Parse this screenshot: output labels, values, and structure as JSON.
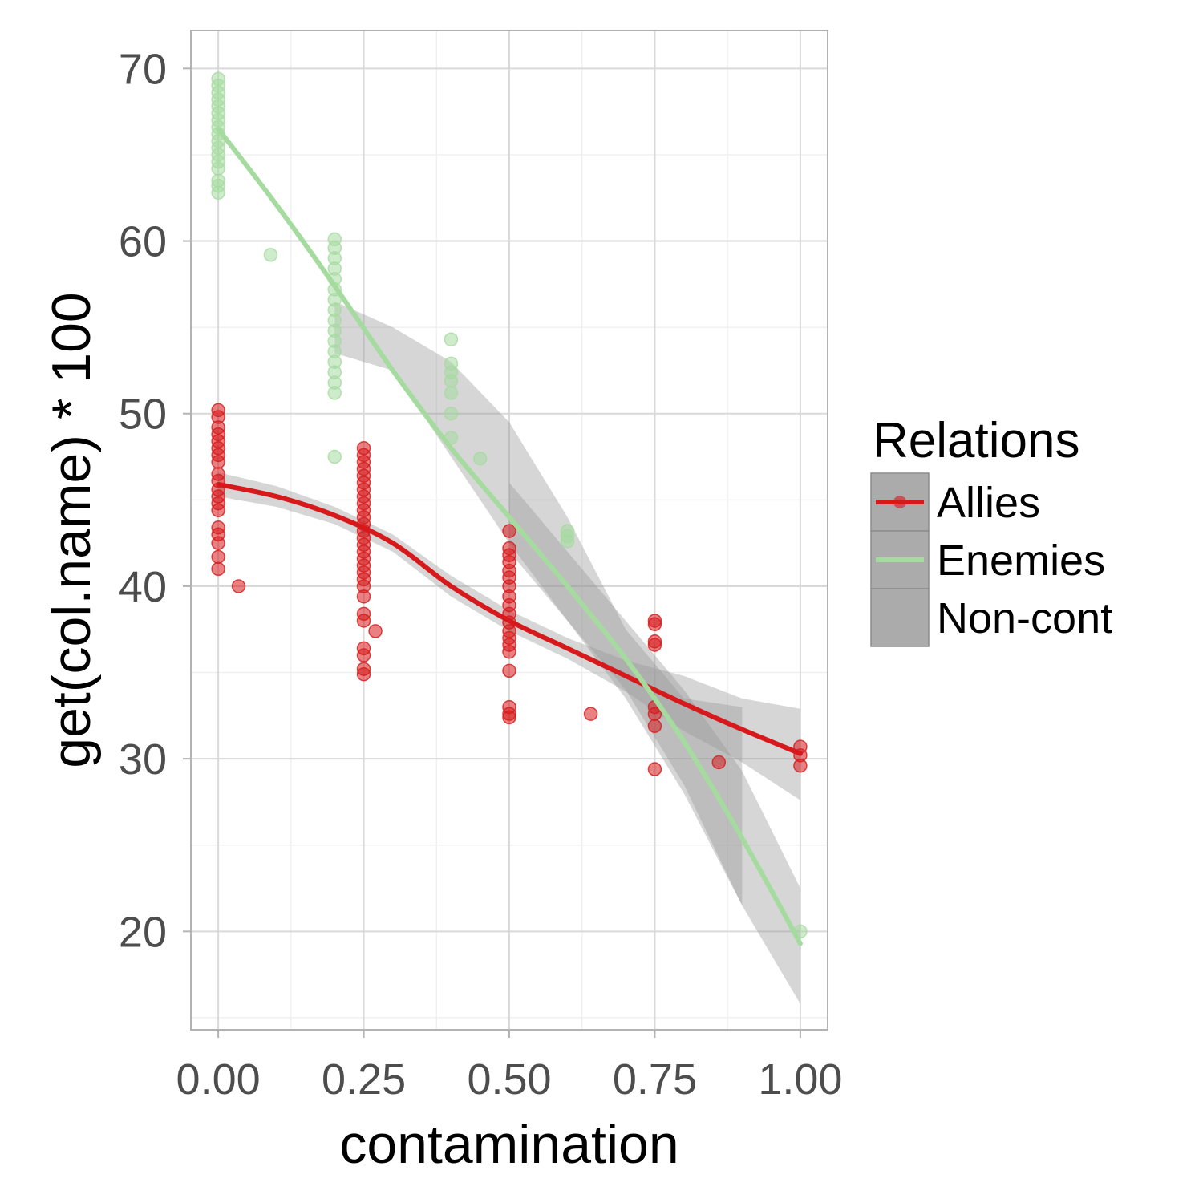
{
  "chart_data": {
    "type": "scatter",
    "xlabel": "contamination",
    "ylabel": "get(col.name) * 100",
    "xlim": [
      -0.047,
      1.047
    ],
    "ylim": [
      14.3,
      72.2
    ],
    "x_ticks": [
      0,
      0.25,
      0.5,
      0.75,
      1
    ],
    "x_tick_labels": [
      "0.00",
      "0.25",
      "0.50",
      "0.75",
      "1.00"
    ],
    "y_ticks": [
      20,
      30,
      40,
      50,
      60,
      70
    ],
    "y_tick_labels": [
      "20",
      "30",
      "40",
      "50",
      "60",
      "70"
    ],
    "grid": true,
    "legend": {
      "title": "Relations",
      "placement": "right",
      "entries": [
        "Allies",
        "Enemies",
        "Non-cont"
      ]
    },
    "colors": {
      "Allies": "#d7191c",
      "Enemies": "#a6dba0",
      "Non-cont": "#999999",
      "ribbon": "#999999",
      "panel_border": "#b3b3b3",
      "grid_major": "#d9d9d9",
      "grid_minor": "#f0f0f0"
    },
    "series": [
      {
        "name": "Allies",
        "points": [
          [
            0,
            50.2
          ],
          [
            0,
            49.8
          ],
          [
            0,
            49.2
          ],
          [
            0,
            48.8
          ],
          [
            0,
            48.4
          ],
          [
            0,
            48.0
          ],
          [
            0,
            47.6
          ],
          [
            0,
            47.2
          ],
          [
            0,
            46.5
          ],
          [
            0,
            46.1
          ],
          [
            0,
            45.6
          ],
          [
            0,
            45.2
          ],
          [
            0,
            44.8
          ],
          [
            0,
            44.4
          ],
          [
            0,
            43.4
          ],
          [
            0,
            43.0
          ],
          [
            0,
            42.5
          ],
          [
            0,
            41.7
          ],
          [
            0,
            41.0
          ],
          [
            0.035,
            40.0
          ],
          [
            0.25,
            48.0
          ],
          [
            0.25,
            47.6
          ],
          [
            0.25,
            47.2
          ],
          [
            0.25,
            46.8
          ],
          [
            0.25,
            46.4
          ],
          [
            0.25,
            46.0
          ],
          [
            0.25,
            45.6
          ],
          [
            0.25,
            45.2
          ],
          [
            0.25,
            44.8
          ],
          [
            0.25,
            44.4
          ],
          [
            0.25,
            44.0
          ],
          [
            0.25,
            43.6
          ],
          [
            0.25,
            43.2
          ],
          [
            0.25,
            42.8
          ],
          [
            0.25,
            42.4
          ],
          [
            0.25,
            42.0
          ],
          [
            0.25,
            41.6
          ],
          [
            0.25,
            41.2
          ],
          [
            0.25,
            40.8
          ],
          [
            0.25,
            40.4
          ],
          [
            0.25,
            40.0
          ],
          [
            0.25,
            39.4
          ],
          [
            0.25,
            38.4
          ],
          [
            0.25,
            38.0
          ],
          [
            0.25,
            36.4
          ],
          [
            0.25,
            36.0
          ],
          [
            0.25,
            35.2
          ],
          [
            0.25,
            34.9
          ],
          [
            0.27,
            37.4
          ],
          [
            0.5,
            43.2
          ],
          [
            0.5,
            42.2
          ],
          [
            0.5,
            41.8
          ],
          [
            0.5,
            41.4
          ],
          [
            0.5,
            40.9
          ],
          [
            0.5,
            40.5
          ],
          [
            0.5,
            40.0
          ],
          [
            0.5,
            39.4
          ],
          [
            0.5,
            38.9
          ],
          [
            0.5,
            38.4
          ],
          [
            0.5,
            37.9
          ],
          [
            0.5,
            37.4
          ],
          [
            0.5,
            37.0
          ],
          [
            0.5,
            36.6
          ],
          [
            0.5,
            36.2
          ],
          [
            0.5,
            35.1
          ],
          [
            0.5,
            33.0
          ],
          [
            0.5,
            32.6
          ],
          [
            0.5,
            32.4
          ],
          [
            0.64,
            32.6
          ],
          [
            0.75,
            38.0
          ],
          [
            0.75,
            37.8
          ],
          [
            0.75,
            36.8
          ],
          [
            0.75,
            36.6
          ],
          [
            0.75,
            33.0
          ],
          [
            0.75,
            32.6
          ],
          [
            0.75,
            31.9
          ],
          [
            0.75,
            29.4
          ],
          [
            0.86,
            29.8
          ],
          [
            1,
            30.7
          ],
          [
            1,
            30.2
          ],
          [
            1,
            29.6
          ]
        ],
        "fit": [
          [
            0,
            45.9
          ],
          [
            0.1,
            45.2
          ],
          [
            0.2,
            44.1
          ],
          [
            0.3,
            42.5
          ],
          [
            0.4,
            40.0
          ],
          [
            0.5,
            38.0
          ],
          [
            0.6,
            36.4
          ],
          [
            0.7,
            34.8
          ],
          [
            0.8,
            33.2
          ],
          [
            0.9,
            31.7
          ],
          [
            1,
            30.3
          ]
        ],
        "ribbon_upper": [
          [
            0,
            46.6
          ],
          [
            0.1,
            45.8
          ],
          [
            0.2,
            44.6
          ],
          [
            0.3,
            43.0
          ],
          [
            0.4,
            40.6
          ],
          [
            0.5,
            38.6
          ],
          [
            0.6,
            37.0
          ],
          [
            0.7,
            35.7
          ],
          [
            0.8,
            34.8
          ],
          [
            0.9,
            33.5
          ],
          [
            1,
            32.9
          ]
        ],
        "ribbon_lower": [
          [
            0,
            45.2
          ],
          [
            0.1,
            44.6
          ],
          [
            0.2,
            43.6
          ],
          [
            0.3,
            42.0
          ],
          [
            0.4,
            39.4
          ],
          [
            0.5,
            37.4
          ],
          [
            0.6,
            35.8
          ],
          [
            0.7,
            33.9
          ],
          [
            0.8,
            31.6
          ],
          [
            0.9,
            29.8
          ],
          [
            1,
            27.6
          ]
        ]
      },
      {
        "name": "Enemies",
        "points": [
          [
            0,
            69.4
          ],
          [
            0,
            69.0
          ],
          [
            0,
            68.6
          ],
          [
            0,
            68.2
          ],
          [
            0,
            67.8
          ],
          [
            0,
            67.4
          ],
          [
            0,
            67.0
          ],
          [
            0,
            66.6
          ],
          [
            0,
            66.2
          ],
          [
            0,
            65.8
          ],
          [
            0,
            65.4
          ],
          [
            0,
            65.0
          ],
          [
            0,
            64.6
          ],
          [
            0,
            64.2
          ],
          [
            0,
            63.5
          ],
          [
            0,
            63.2
          ],
          [
            0,
            62.8
          ],
          [
            0.09,
            59.2
          ],
          [
            0.2,
            60.1
          ],
          [
            0.2,
            59.6
          ],
          [
            0.2,
            59.0
          ],
          [
            0.2,
            58.4
          ],
          [
            0.2,
            57.8
          ],
          [
            0.2,
            57.2
          ],
          [
            0.2,
            56.6
          ],
          [
            0.2,
            56.0
          ],
          [
            0.2,
            55.4
          ],
          [
            0.2,
            54.8
          ],
          [
            0.2,
            54.2
          ],
          [
            0.2,
            53.6
          ],
          [
            0.2,
            53.0
          ],
          [
            0.2,
            52.4
          ],
          [
            0.2,
            51.8
          ],
          [
            0.2,
            51.2
          ],
          [
            0.2,
            47.5
          ],
          [
            0.4,
            54.3
          ],
          [
            0.4,
            52.9
          ],
          [
            0.4,
            52.4
          ],
          [
            0.4,
            51.9
          ],
          [
            0.4,
            51.2
          ],
          [
            0.4,
            50.0
          ],
          [
            0.4,
            48.6
          ],
          [
            0.45,
            47.4
          ],
          [
            0.6,
            43.2
          ],
          [
            0.6,
            42.9
          ],
          [
            0.6,
            42.6
          ],
          [
            1,
            20.0
          ]
        ],
        "fit": [
          [
            0,
            66.5
          ],
          [
            0.1,
            62.1
          ],
          [
            0.2,
            57.4
          ],
          [
            0.3,
            52.5
          ],
          [
            0.4,
            48.0
          ],
          [
            0.5,
            44.0
          ],
          [
            0.6,
            40.0
          ],
          [
            0.7,
            35.8
          ],
          [
            0.8,
            31.0
          ],
          [
            0.9,
            25.4
          ],
          [
            1,
            19.3
          ]
        ],
        "ribbon_upper": [
          [
            0.5,
            46.0
          ],
          [
            0.6,
            42.0
          ],
          [
            0.7,
            38.0
          ],
          [
            0.8,
            34.0
          ],
          [
            0.9,
            29.3
          ],
          [
            1,
            22.5
          ]
        ],
        "ribbon_lower": [
          [
            0.5,
            42.0
          ],
          [
            0.6,
            38.0
          ],
          [
            0.7,
            33.5
          ],
          [
            0.8,
            28.0
          ],
          [
            0.9,
            21.5
          ],
          [
            1,
            15.8
          ]
        ]
      },
      {
        "name": "Non-cont",
        "points": [],
        "fit": [
          [
            0.2,
            56.5
          ],
          [
            0.3,
            53.5
          ],
          [
            0.4,
            49.6
          ],
          [
            0.5,
            45.6
          ],
          [
            0.6,
            41.0
          ],
          [
            0.7,
            35.8
          ],
          [
            0.75,
            33.5
          ],
          [
            0.8,
            31.5
          ],
          [
            0.9,
            28.5
          ]
        ],
        "ribbon_upper": [
          [
            0.2,
            56.5
          ],
          [
            0.3,
            55.0
          ],
          [
            0.4,
            53.0
          ],
          [
            0.5,
            49.5
          ],
          [
            0.6,
            44.0
          ],
          [
            0.7,
            37.5
          ],
          [
            0.8,
            33.5
          ],
          [
            0.9,
            33.0
          ]
        ],
        "ribbon_lower": [
          [
            0.2,
            53.5
          ],
          [
            0.3,
            52.5
          ],
          [
            0.4,
            47.5
          ],
          [
            0.5,
            42.5
          ],
          [
            0.6,
            38.0
          ],
          [
            0.7,
            34.0
          ],
          [
            0.8,
            28.5
          ],
          [
            0.9,
            21.5
          ]
        ]
      }
    ]
  }
}
